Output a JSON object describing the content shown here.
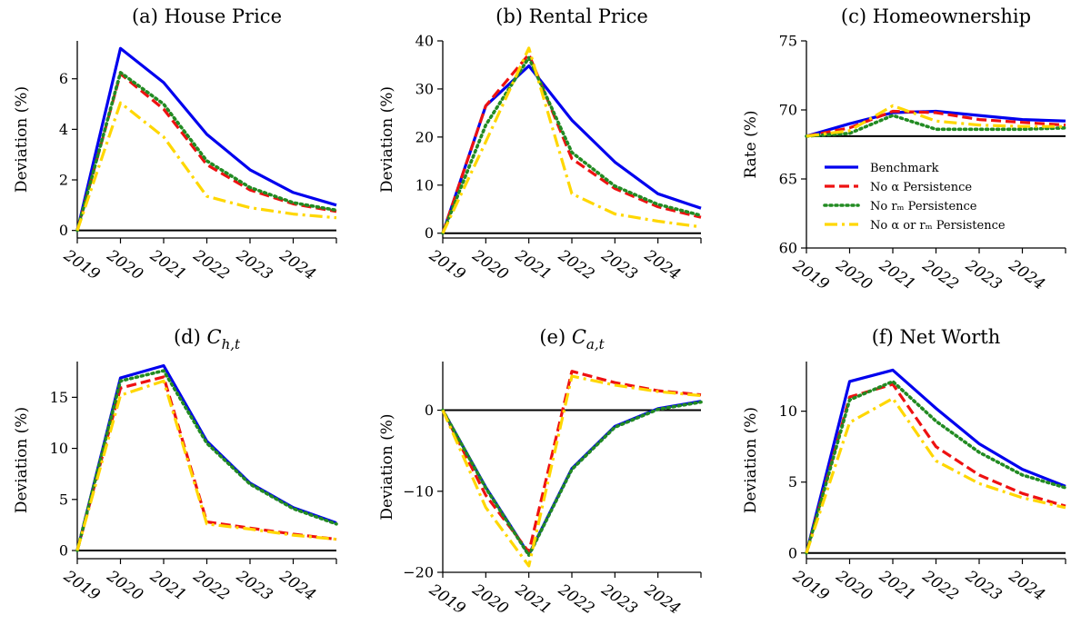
{
  "colors": {
    "benchmark": "#0000ee",
    "no_alpha": "#ee1111",
    "no_rm": "#228b22",
    "no_both": "#ffd700",
    "axis": "#000000"
  },
  "legend": {
    "entries": [
      "Benchmark",
      "No α Persistence",
      "No rₘ Persistence",
      "No α or rₘ Persistence"
    ]
  },
  "chart_data": [
    {
      "type": "line",
      "title": "(a) House Price",
      "ylabel": "Deviation (%)",
      "x": [
        "2019",
        "2020",
        "2021",
        "2022",
        "2023",
        "2024",
        "2025"
      ],
      "xticks": [
        "2019",
        "2020",
        "2021",
        "2022",
        "2023",
        "2024"
      ],
      "yticks": [
        0,
        2,
        4,
        6
      ],
      "ylim": [
        -0.3,
        7.5
      ],
      "zero_line": 0,
      "series": [
        {
          "name": "Benchmark",
          "values": [
            0,
            7.2,
            5.85,
            3.8,
            2.4,
            1.5,
            1.0
          ]
        },
        {
          "name": "No α Persistence",
          "values": [
            0,
            6.2,
            4.8,
            2.6,
            1.6,
            1.05,
            0.75
          ]
        },
        {
          "name": "No rₘ Persistence",
          "values": [
            0,
            6.25,
            5.0,
            2.75,
            1.7,
            1.1,
            0.8
          ]
        },
        {
          "name": "No α or rₘ Persistence",
          "values": [
            0,
            5.05,
            3.7,
            1.35,
            0.9,
            0.65,
            0.5
          ]
        }
      ]
    },
    {
      "type": "line",
      "title": "(b) Rental Price",
      "ylabel": "Deviation (%)",
      "x": [
        "2019",
        "2020",
        "2021",
        "2022",
        "2023",
        "2024",
        "2025"
      ],
      "xticks": [
        "2019",
        "2020",
        "2021",
        "2022",
        "2023",
        "2024"
      ],
      "yticks": [
        0,
        10,
        20,
        30,
        40
      ],
      "ylim": [
        -1,
        40
      ],
      "zero_line": 0,
      "series": [
        {
          "name": "Benchmark",
          "values": [
            0,
            26.5,
            34.8,
            23.5,
            14.8,
            8.2,
            5.2
          ]
        },
        {
          "name": "No α Persistence",
          "values": [
            0,
            26.5,
            37.2,
            15.5,
            9.3,
            5.5,
            3.3
          ]
        },
        {
          "name": "No rₘ Persistence",
          "values": [
            0,
            22.5,
            36.5,
            16.8,
            9.8,
            6.0,
            3.7
          ]
        },
        {
          "name": "No α or rₘ Persistence",
          "values": [
            0,
            19.0,
            38.5,
            8.2,
            4.0,
            2.5,
            1.3
          ]
        }
      ]
    },
    {
      "type": "line",
      "title": "(c) Homeownership",
      "ylabel": "Rate (%)",
      "x": [
        "2019",
        "2020",
        "2021",
        "2022",
        "2023",
        "2024",
        "2025"
      ],
      "xticks": [
        "2019",
        "2020",
        "2021",
        "2022",
        "2023",
        "2024"
      ],
      "yticks": [
        60,
        65,
        70,
        75
      ],
      "ylim": [
        60,
        75
      ],
      "zero_line": 68.1,
      "legend": "center-right",
      "series": [
        {
          "name": "Benchmark",
          "values": [
            68.1,
            69.0,
            69.8,
            69.9,
            69.6,
            69.3,
            69.2
          ]
        },
        {
          "name": "No α Persistence",
          "values": [
            68.1,
            68.7,
            69.9,
            69.8,
            69.3,
            69.1,
            68.9
          ]
        },
        {
          "name": "No rₘ Persistence",
          "values": [
            68.1,
            68.3,
            69.6,
            68.6,
            68.6,
            68.6,
            68.7
          ]
        },
        {
          "name": "No α or rₘ Persistence",
          "values": [
            68.1,
            68.5,
            70.3,
            69.2,
            68.9,
            68.8,
            68.8
          ]
        }
      ]
    },
    {
      "type": "line",
      "title": "(d) C",
      "title_sub": "h,t",
      "ylabel": "Deviation (%)",
      "x": [
        "2019",
        "2020",
        "2021",
        "2022",
        "2023",
        "2024",
        "2025"
      ],
      "xticks": [
        "2019",
        "2020",
        "2021",
        "2022",
        "2023",
        "2024"
      ],
      "yticks": [
        0,
        5,
        10,
        15
      ],
      "ylim": [
        -0.8,
        18.5
      ],
      "zero_line": 0,
      "series": [
        {
          "name": "Benchmark",
          "values": [
            0,
            16.9,
            18.1,
            10.7,
            6.6,
            4.2,
            2.7
          ]
        },
        {
          "name": "No α Persistence",
          "values": [
            0,
            15.9,
            17.0,
            2.8,
            2.2,
            1.6,
            1.1
          ]
        },
        {
          "name": "No rₘ Persistence",
          "values": [
            0,
            16.6,
            17.6,
            10.5,
            6.5,
            4.1,
            2.6
          ]
        },
        {
          "name": "No α or rₘ Persistence",
          "values": [
            0,
            15.2,
            16.6,
            2.6,
            2.1,
            1.5,
            1.1
          ]
        }
      ]
    },
    {
      "type": "line",
      "title": "(e) C",
      "title_sub": "a,t",
      "ylabel": "Deviation (%)",
      "x": [
        "2019",
        "2020",
        "2021",
        "2022",
        "2023",
        "2024",
        "2025"
      ],
      "xticks": [
        "2019",
        "2020",
        "2021",
        "2022",
        "2023",
        "2024"
      ],
      "yticks": [
        0,
        -10,
        -20
      ],
      "ylim": [
        -20,
        6
      ],
      "zero_line": 0,
      "series": [
        {
          "name": "Benchmark",
          "values": [
            0,
            -9.5,
            -17.8,
            -7.2,
            -2.0,
            0.2,
            1.1
          ]
        },
        {
          "name": "No α Persistence",
          "values": [
            0,
            -10.5,
            -17.5,
            4.8,
            3.4,
            2.4,
            1.9
          ]
        },
        {
          "name": "No rₘ Persistence",
          "values": [
            0,
            -9.6,
            -17.9,
            -7.3,
            -2.1,
            0.1,
            1.0
          ]
        },
        {
          "name": "No α or rₘ Persistence",
          "values": [
            0,
            -12.0,
            -19.2,
            4.2,
            3.1,
            2.3,
            1.8
          ]
        }
      ]
    },
    {
      "type": "line",
      "title": "(f) Net Worth",
      "ylabel": "Deviation (%)",
      "x": [
        "2019",
        "2020",
        "2021",
        "2022",
        "2023",
        "2024",
        "2025"
      ],
      "xticks": [
        "2019",
        "2020",
        "2021",
        "2022",
        "2023",
        "2024"
      ],
      "yticks": [
        0,
        5,
        10
      ],
      "ylim": [
        -0.4,
        13.5
      ],
      "zero_line": 0,
      "series": [
        {
          "name": "Benchmark",
          "values": [
            0,
            12.1,
            12.9,
            10.2,
            7.7,
            5.9,
            4.7
          ]
        },
        {
          "name": "No α Persistence",
          "values": [
            0,
            11.0,
            11.9,
            7.5,
            5.5,
            4.2,
            3.3
          ]
        },
        {
          "name": "No rₘ Persistence",
          "values": [
            0,
            10.8,
            12.1,
            9.3,
            7.1,
            5.5,
            4.6
          ]
        },
        {
          "name": "No α or rₘ Persistence",
          "values": [
            0,
            9.2,
            10.9,
            6.5,
            4.9,
            3.9,
            3.2
          ]
        }
      ]
    }
  ]
}
